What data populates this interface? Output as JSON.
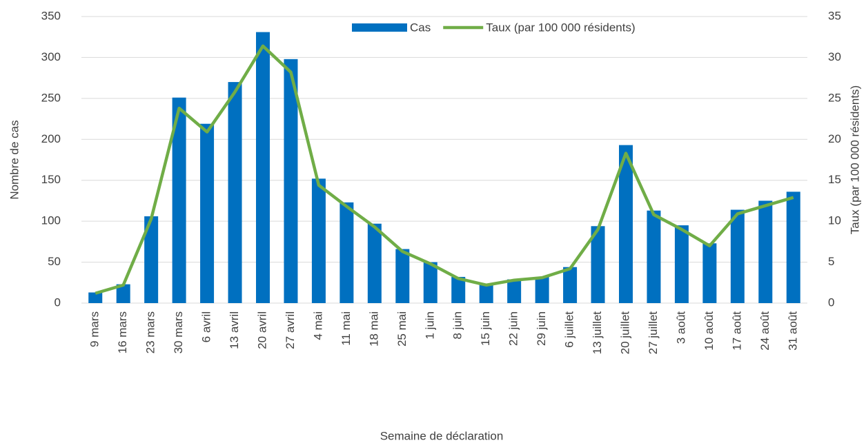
{
  "chart_data": {
    "type": "bar_line",
    "x_label": "Semaine de déclaration",
    "y_label": "Nombre de cas",
    "y2_label": "Taux (par 100 000 résidents)",
    "categories": [
      "9 mars",
      "16 mars",
      "23 mars",
      "30 mars",
      "6 avril",
      "13 avril",
      "20 avril",
      "27 avril",
      "4 mai",
      "11 mai",
      "18 mai",
      "25 mai",
      "1 juin",
      "8 juin",
      "15 juin",
      "22 juin",
      "29 juin",
      "6 juillet",
      "13 juillet",
      "20 juillet",
      "27 juillet",
      "3 août",
      "10 août",
      "17 août",
      "24 août",
      "31 août"
    ],
    "series": [
      {
        "name": "Cas",
        "type": "bar",
        "color": "#0070c0",
        "axis": "y",
        "values": [
          13,
          23,
          106,
          251,
          219,
          270,
          331,
          298,
          152,
          123,
          97,
          66,
          50,
          32,
          23,
          29,
          32,
          44,
          94,
          193,
          113,
          95,
          73,
          114,
          125,
          136
        ]
      },
      {
        "name": "Taux (par 100 000 résidents)",
        "type": "line",
        "color": "#70ad47",
        "axis": "y2",
        "values": [
          1.2,
          2.2,
          10.3,
          23.8,
          20.9,
          25.8,
          31.4,
          28.2,
          14.4,
          11.8,
          9.3,
          6.3,
          4.8,
          3.0,
          2.2,
          2.8,
          3.1,
          4.2,
          9.0,
          18.3,
          10.8,
          9.0,
          7.0,
          10.9,
          11.9,
          12.9
        ]
      }
    ],
    "ylim": [
      0,
      350
    ],
    "yticks": [
      0,
      50,
      100,
      150,
      200,
      250,
      300,
      350
    ],
    "y2lim": [
      0,
      35
    ],
    "y2ticks": [
      0,
      5,
      10,
      15,
      20,
      25,
      30,
      35
    ],
    "grid": true,
    "legend": "top"
  }
}
